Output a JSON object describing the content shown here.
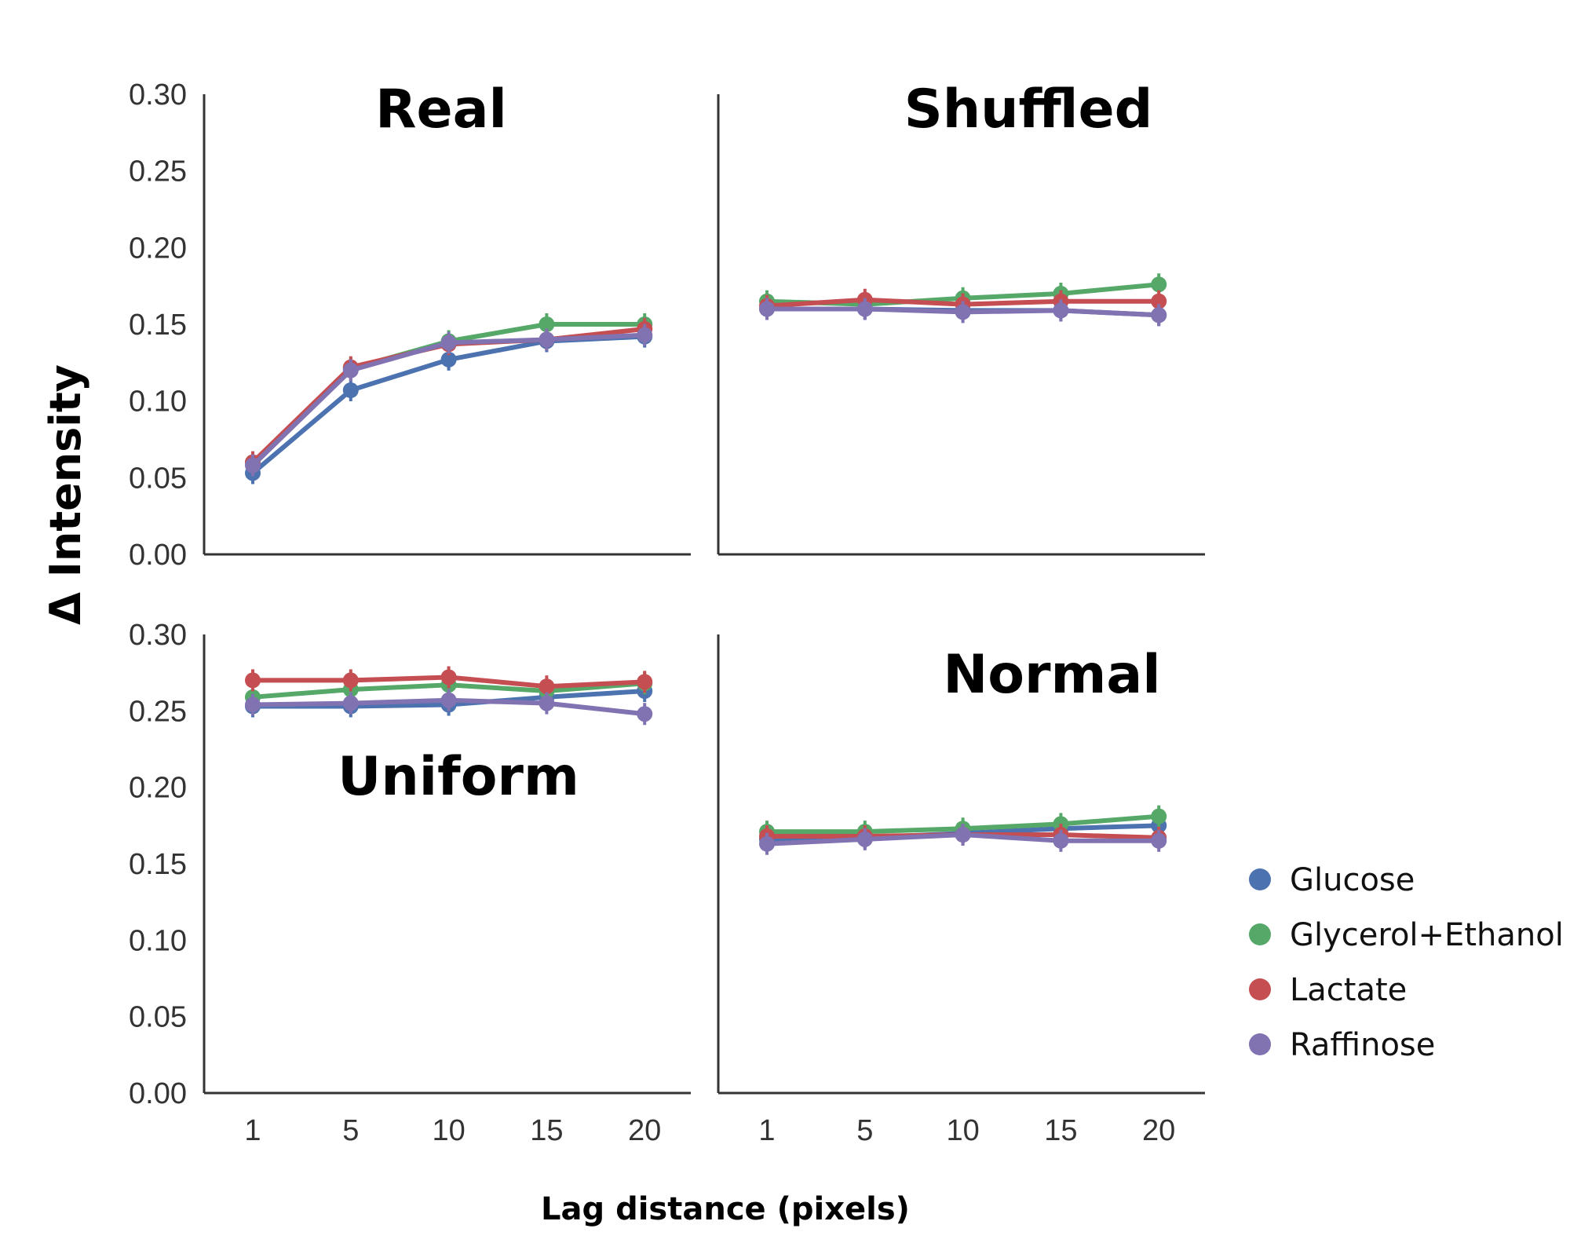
{
  "chart_data": {
    "type": "line",
    "ylabel": "Δ Intensity",
    "xlabel": "Lag distance (pixels)",
    "x": [
      1,
      5,
      10,
      15,
      20
    ],
    "y_ticks": [
      "0.00",
      "0.05",
      "0.10",
      "0.15",
      "0.20",
      "0.25",
      "0.30"
    ],
    "ylim": [
      0,
      0.3
    ],
    "grid": false,
    "legend_position": "right",
    "legend": [
      {
        "name": "Glucose",
        "color": "#4c72b0"
      },
      {
        "name": "Glycerol+Ethanol",
        "color": "#55a868"
      },
      {
        "name": "Lactate",
        "color": "#c44e52"
      },
      {
        "name": "Raffinose",
        "color": "#8172b2"
      }
    ],
    "panels": [
      {
        "title": "Real",
        "series": [
          {
            "name": "Glucose",
            "values": [
              0.053,
              0.107,
              0.127,
              0.139,
              0.142
            ]
          },
          {
            "name": "Glycerol+Ethanol",
            "values": [
              0.06,
              0.121,
              0.139,
              0.15,
              0.15
            ]
          },
          {
            "name": "Lactate",
            "values": [
              0.06,
              0.122,
              0.137,
              0.14,
              0.147
            ]
          },
          {
            "name": "Raffinose",
            "values": [
              0.058,
              0.12,
              0.138,
              0.14,
              0.143
            ]
          }
        ]
      },
      {
        "title": "Shuffled",
        "series": [
          {
            "name": "Glucose",
            "values": [
              0.16,
              0.16,
              0.159,
              0.159,
              0.156
            ]
          },
          {
            "name": "Glycerol+Ethanol",
            "values": [
              0.165,
              0.163,
              0.167,
              0.17,
              0.176
            ]
          },
          {
            "name": "Lactate",
            "values": [
              0.162,
              0.166,
              0.163,
              0.165,
              0.165
            ]
          },
          {
            "name": "Raffinose",
            "values": [
              0.16,
              0.16,
              0.158,
              0.159,
              0.156
            ]
          }
        ]
      },
      {
        "title": "Uniform",
        "series": [
          {
            "name": "Glucose",
            "values": [
              0.253,
              0.253,
              0.254,
              0.259,
              0.263
            ]
          },
          {
            "name": "Glycerol+Ethanol",
            "values": [
              0.259,
              0.264,
              0.267,
              0.263,
              0.268
            ]
          },
          {
            "name": "Lactate",
            "values": [
              0.27,
              0.27,
              0.272,
              0.266,
              0.269
            ]
          },
          {
            "name": "Raffinose",
            "values": [
              0.254,
              0.255,
              0.257,
              0.255,
              0.248
            ]
          }
        ]
      },
      {
        "title": "Normal",
        "series": [
          {
            "name": "Glucose",
            "values": [
              0.166,
              0.167,
              0.17,
              0.173,
              0.175
            ]
          },
          {
            "name": "Glycerol+Ethanol",
            "values": [
              0.171,
              0.171,
              0.173,
              0.176,
              0.181
            ]
          },
          {
            "name": "Lactate",
            "values": [
              0.168,
              0.168,
              0.169,
              0.169,
              0.167
            ]
          },
          {
            "name": "Raffinose",
            "values": [
              0.163,
              0.166,
              0.169,
              0.165,
              0.165
            ]
          }
        ]
      }
    ]
  }
}
